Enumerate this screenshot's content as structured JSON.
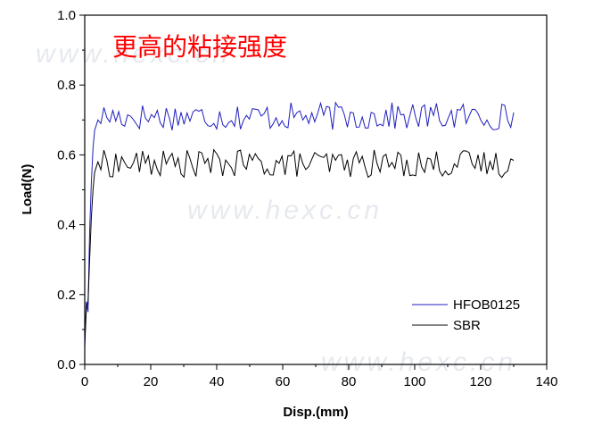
{
  "chart_data": {
    "type": "line",
    "title": "更高的粘接强度",
    "xlabel": "Disp.(mm)",
    "ylabel": "Load(N)",
    "xlim": [
      0,
      140
    ],
    "ylim": [
      0,
      1.0
    ],
    "x_ticks": [
      0,
      20,
      40,
      60,
      80,
      100,
      120,
      140
    ],
    "y_ticks": [
      0.0,
      0.2,
      0.4,
      0.6,
      0.8,
      1.0
    ],
    "x_tick_labels": [
      "0",
      "20",
      "40",
      "60",
      "80",
      "100",
      "120",
      "140"
    ],
    "y_tick_labels": [
      "0.0",
      "0.2",
      "0.4",
      "0.6",
      "0.8",
      "1.0"
    ],
    "grid": false,
    "legend_position": "bottom-right",
    "series": [
      {
        "name": "HFOB0125",
        "color": "#1f1fbf",
        "start": [
          [
            0,
            0.06
          ],
          [
            0.5,
            0.18
          ],
          [
            1,
            0.15
          ],
          [
            1.5,
            0.38
          ],
          [
            2,
            0.52
          ],
          [
            2.5,
            0.62
          ],
          [
            3,
            0.67
          ],
          [
            4,
            0.7
          ]
        ],
        "plateau_mean": 0.71,
        "plateau_amplitude": 0.04,
        "x_end": 130
      },
      {
        "name": "SBR",
        "color": "#000000",
        "start": [
          [
            0,
            0.05
          ],
          [
            0.5,
            0.16
          ],
          [
            1,
            0.18
          ],
          [
            1.5,
            0.3
          ],
          [
            2,
            0.42
          ],
          [
            2.5,
            0.5
          ],
          [
            3,
            0.55
          ],
          [
            4,
            0.58
          ]
        ],
        "plateau_mean": 0.575,
        "plateau_amplitude": 0.04,
        "x_end": 130
      }
    ]
  },
  "watermarks": [
    "www.hexc.cn",
    "www.hexc.cn",
    "www.hexc.cn"
  ]
}
